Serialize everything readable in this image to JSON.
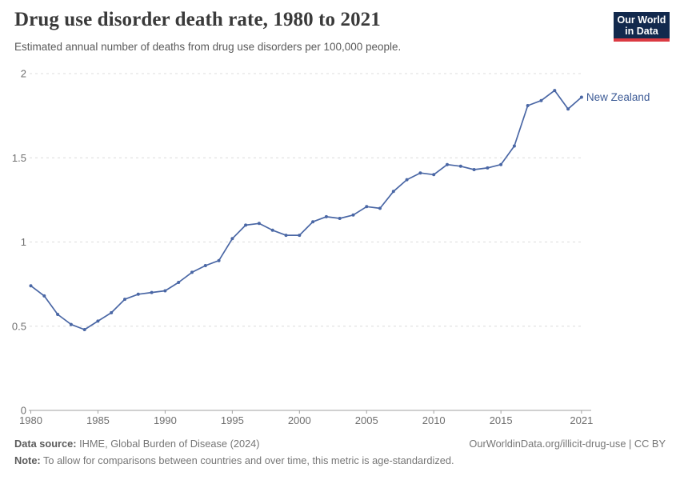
{
  "header": {
    "title": "Drug use disorder death rate, 1980 to 2021",
    "subtitle": "Estimated annual number of deaths from drug use disorders per 100,000 people.",
    "logo_line1": "Our World",
    "logo_line2": "in Data"
  },
  "chart_data": {
    "type": "line",
    "title": "Drug use disorder death rate, 1980 to 2021",
    "ylabel": "Deaths from drug use disorders per 100,000 people",
    "xlim": [
      1980,
      2021
    ],
    "ylim": [
      0,
      2
    ],
    "grid": "horizontal-dashed",
    "legend": "end-of-line-label",
    "x_ticks": [
      1980,
      1985,
      1990,
      1995,
      2000,
      2005,
      2010,
      2015,
      2021
    ],
    "y_ticks": [
      0,
      0.5,
      1,
      1.5,
      2
    ],
    "y_tick_labels": [
      "0",
      "0.5",
      "1",
      "1.5",
      "2"
    ],
    "series": [
      {
        "name": "New Zealand",
        "color": "#4a67a5",
        "x": [
          1980,
          1981,
          1982,
          1983,
          1984,
          1985,
          1986,
          1987,
          1988,
          1989,
          1990,
          1991,
          1992,
          1993,
          1994,
          1995,
          1996,
          1997,
          1998,
          1999,
          2000,
          2001,
          2002,
          2003,
          2004,
          2005,
          2006,
          2007,
          2008,
          2009,
          2010,
          2011,
          2012,
          2013,
          2014,
          2015,
          2016,
          2017,
          2018,
          2019,
          2020,
          2021
        ],
        "values": [
          0.74,
          0.68,
          0.57,
          0.51,
          0.48,
          0.53,
          0.58,
          0.66,
          0.69,
          0.7,
          0.71,
          0.76,
          0.82,
          0.86,
          0.89,
          1.02,
          1.1,
          1.11,
          1.07,
          1.04,
          1.04,
          1.12,
          1.15,
          1.14,
          1.16,
          1.21,
          1.2,
          1.3,
          1.37,
          1.41,
          1.4,
          1.46,
          1.45,
          1.43,
          1.44,
          1.46,
          1.57,
          1.81,
          1.84,
          1.9,
          1.79,
          1.86
        ]
      }
    ]
  },
  "colors": {
    "line": "#4a67a5",
    "series_label": "#3d5b96",
    "grid": "#dcdcdc",
    "axis": "#a0a0a0",
    "tick_text": "#6f6f6f",
    "logo_navy": "#12294d",
    "logo_red": "#db3a42"
  },
  "footer": {
    "source_label": "Data source:",
    "source_text": " IHME, Global Burden of Disease (2024)",
    "link": "OurWorldinData.org/illicit-drug-use | CC BY",
    "note_label": "Note:",
    "note_text": " To allow for comparisons between countries and over time, this metric is age-standardized."
  }
}
